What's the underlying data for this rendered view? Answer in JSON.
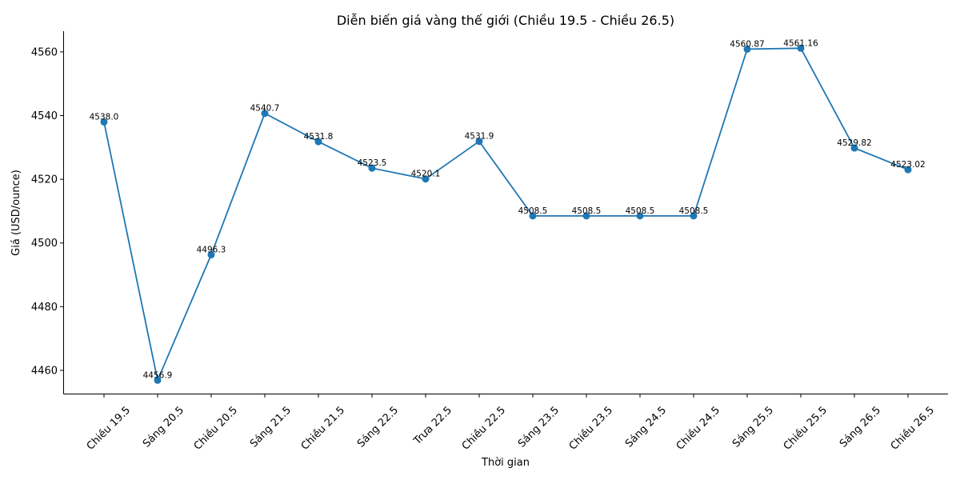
{
  "chart_data": {
    "type": "line",
    "title": "Diễn biến giá vàng thế giới (Chiều 19.5 - Chiều 26.5)",
    "xlabel": "Thời gian",
    "ylabel": "Giá (USD/ounce)",
    "categories": [
      "Chiều 19.5",
      "Sáng 20.5",
      "Chiều 20.5",
      "Sáng 21.5",
      "Chiều 21.5",
      "Sáng 22.5",
      "Trưa 22.5",
      "Chiều 22.5",
      "Sáng 23.5",
      "Chiều 23.5",
      "Sáng 24.5",
      "Chiều 24.5",
      "Sáng 25.5",
      "Chiều 25.5",
      "Sáng 26.5",
      "Chiều 26.5"
    ],
    "series": [
      {
        "values": [
          4538.0,
          4456.9,
          4496.3,
          4540.7,
          4531.8,
          4523.5,
          4520.1,
          4531.9,
          4508.5,
          4508.5,
          4508.5,
          4508.5,
          4560.87,
          4561.16,
          4529.82,
          4523.02
        ],
        "value_labels": [
          "4538.0",
          "4456.9",
          "4496.3",
          "4540.7",
          "4531.8",
          "4523.5",
          "4520.1",
          "4531.9",
          "4508.5",
          "4508.5",
          "4508.5",
          "4508.5",
          "4560.87",
          "4561.16",
          "4529.82",
          "4523.02"
        ],
        "color": "#1f77b4"
      }
    ],
    "ylim": [
      4452.7,
      4566.5
    ],
    "yticks": [
      4460,
      4480,
      4500,
      4520,
      4540,
      4560
    ],
    "grid": false,
    "legend": false
  }
}
